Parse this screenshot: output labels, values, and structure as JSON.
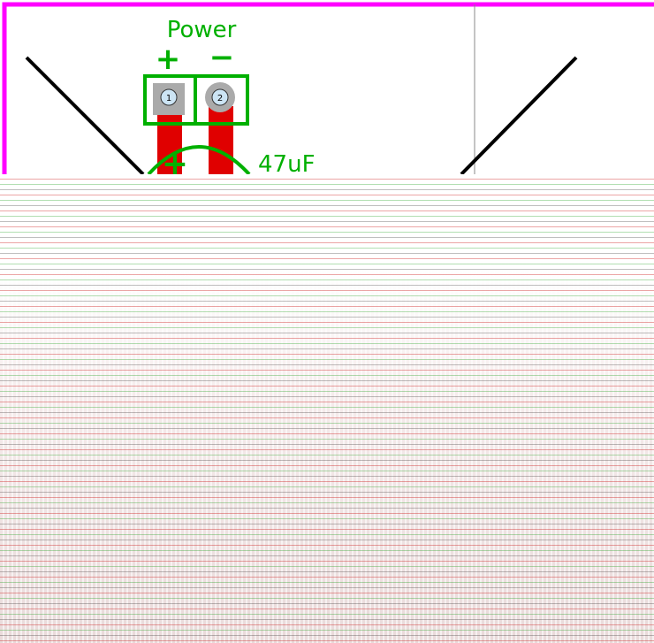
{
  "connector": {
    "label": "Power",
    "plus": "+",
    "minus": "−",
    "pins": [
      "1",
      "2"
    ]
  },
  "capacitor": {
    "polarity": "+",
    "value": "47uF"
  }
}
